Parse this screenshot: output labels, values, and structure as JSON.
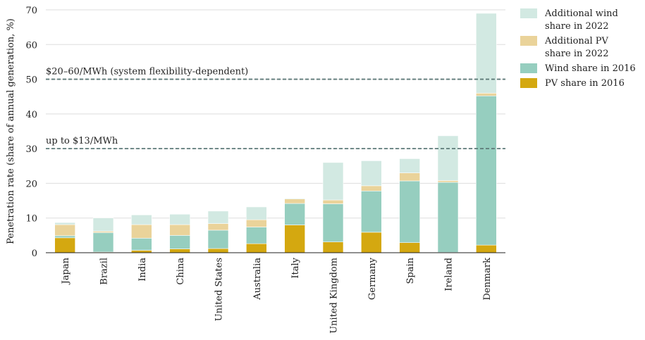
{
  "chart_data": {
    "type": "bar",
    "stacked": true,
    "ylabel": "Penetration rate (share of annual generation, %)",
    "xlabel": "",
    "ylim": [
      0,
      70
    ],
    "yticks": [
      0,
      10,
      20,
      30,
      40,
      50,
      60,
      70
    ],
    "grid": "horizontal",
    "legend_position": "top-right",
    "categories": [
      "Japan",
      "Brazil",
      "India",
      "China",
      "United States",
      "Australia",
      "Italy",
      "United Kingdom",
      "Germany",
      "Spain",
      "Ireland",
      "Denmark"
    ],
    "series": [
      {
        "name": "PV share in 2016",
        "color": "#d4a810",
        "values": [
          4.3,
          0.2,
          0.7,
          1.1,
          1.2,
          2.6,
          8.0,
          3.1,
          5.9,
          2.9,
          0.1,
          2.2
        ]
      },
      {
        "name": "Wind share in 2016",
        "color": "#96cebf",
        "values": [
          0.6,
          5.6,
          3.5,
          3.9,
          5.3,
          4.8,
          6.2,
          11.0,
          11.9,
          17.8,
          20.2,
          43.0
        ]
      },
      {
        "name": "Additional PV share in 2022",
        "color": "#ead39a",
        "values": [
          3.2,
          0.4,
          3.9,
          3.1,
          1.9,
          2.1,
          1.3,
          1.1,
          1.5,
          2.3,
          0.5,
          0.8
        ]
      },
      {
        "name": "Additional wind share in 2022",
        "color": "#d2e9e2",
        "values": [
          0.6,
          3.8,
          2.8,
          3.0,
          3.6,
          3.7,
          0.2,
          10.8,
          7.2,
          4.1,
          12.9,
          23.0
        ]
      }
    ],
    "legend_order": [
      "Additional wind share in 2022",
      "Additional PV share in 2022",
      "Wind share in 2016",
      "PV share in 2016"
    ],
    "legend_lines": {
      "Additional wind share in 2022": [
        "Additional wind",
        "share in 2022"
      ],
      "Additional PV share in 2022": [
        "Additional PV",
        "share in 2022"
      ],
      "Wind share in 2016": [
        "Wind share in 2016"
      ],
      "PV share in 2016": [
        "PV share in 2016"
      ]
    },
    "annotations": [
      {
        "text": "$20–60/MWh (system flexibility-dependent)",
        "y": 50
      },
      {
        "text": "up to $13/MWh",
        "y": 30
      }
    ],
    "colors": {
      "grid": "#dddddd",
      "reference_line": "#5d7a78",
      "axis": "#222222"
    }
  }
}
